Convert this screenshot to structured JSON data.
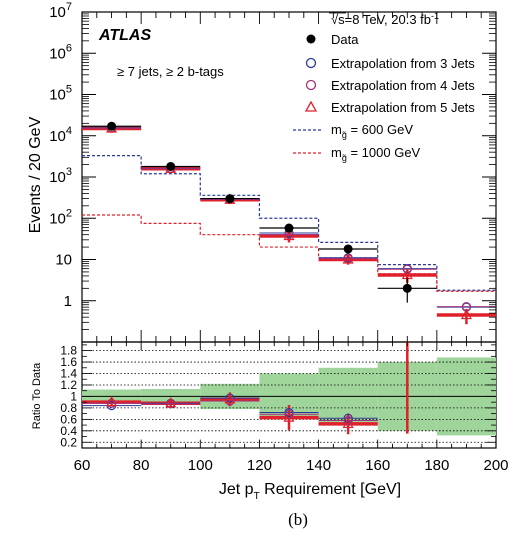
{
  "caption": "(b)",
  "chart_data": {
    "type": "step-histogram",
    "xlabel_main": "Jet p",
    "xlabel_sub": "T",
    "xlabel_rest": " Requirement [GeV]",
    "ylabel": "Events / 20 GeV",
    "ratio_ylabel": "Ratio To Data",
    "xlim": [
      60,
      200
    ],
    "ylim_log": [
      0.1,
      10000000
    ],
    "ratio_ylim": [
      0.1,
      1.95
    ],
    "x_ticks": [
      "60",
      "80",
      "100",
      "120",
      "140",
      "160",
      "180",
      "200"
    ],
    "y_ticks": [
      {
        "base": "10",
        "exp": "7"
      },
      {
        "base": "10",
        "exp": "6"
      },
      {
        "base": "10",
        "exp": "5"
      },
      {
        "base": "10",
        "exp": "4"
      },
      {
        "base": "10",
        "exp": "3"
      },
      {
        "base": "10",
        "exp": "2"
      },
      {
        "base": "10",
        "exp": ""
      },
      {
        "base": "1",
        "exp": ""
      }
    ],
    "ratio_ticks": [
      "1.8",
      "1.6",
      "1.4",
      "1.2",
      "1",
      "0.8",
      "0.6",
      "0.4",
      "0.2"
    ],
    "experiment": "ATLAS",
    "energy_label": "√s=8 TeV, 20.3 fb",
    "energy_sup": "-1",
    "selection": "≥ 7 jets, ≥ 2 b-tags",
    "legend": {
      "data": "Data",
      "ext3": "Extrapolation from 3 Jets",
      "ext4": "Extrapolation from 4 Jets",
      "ext5": "Extrapolation from 5 Jets",
      "sig600_pre": "m",
      "sig600_post": " = 600 GeV",
      "sig1000_pre": "m",
      "sig1000_post": " = 1000 GeV",
      "gluino_sub": "g̃"
    },
    "bins": [
      {
        "lo": 60,
        "hi": 80
      },
      {
        "lo": 80,
        "hi": 100
      },
      {
        "lo": 100,
        "hi": 120
      },
      {
        "lo": 120,
        "hi": 140
      },
      {
        "lo": 140,
        "hi": 160
      },
      {
        "lo": 160,
        "hi": 180
      },
      {
        "lo": 180,
        "hi": 200
      }
    ],
    "data_points": [
      {
        "x": 70,
        "y": 17000,
        "lo": 16500,
        "hi": 17500
      },
      {
        "x": 90,
        "y": 1800,
        "lo": 1720,
        "hi": 1880
      },
      {
        "x": 110,
        "y": 300,
        "lo": 283,
        "hi": 317
      },
      {
        "x": 130,
        "y": 58,
        "lo": 51,
        "hi": 66
      },
      {
        "x": 150,
        "y": 18,
        "lo": 14,
        "hi": 23
      },
      {
        "x": 170,
        "y": 2,
        "lo": 0.9,
        "hi": 3.6
      }
    ],
    "ext3": [
      15500,
      1620,
      290,
      44,
      11,
      6,
      0.7
    ],
    "ext4": [
      15200,
      1600,
      285,
      40,
      10.5,
      5.8,
      0.72
    ],
    "ext5": {
      "values": [
        15000,
        1580,
        280,
        37,
        10,
        4.2,
        0.45
      ],
      "errs": [
        0.1,
        0.1,
        0.12,
        0.3,
        0.25,
        0.35,
        0.4
      ]
    },
    "sig600": [
      3300,
      1200,
      360,
      100,
      26,
      7.5,
      1.8
    ],
    "sig1000": [
      120,
      75,
      40,
      20,
      11,
      4.5,
      1.7
    ],
    "ratio": {
      "ext3": [
        0.84,
        0.88,
        0.97,
        0.72,
        0.62
      ],
      "ext4": [
        0.88,
        0.87,
        0.92,
        0.69,
        0.58
      ],
      "ext5": [
        0.9,
        0.88,
        0.95,
        0.63,
        0.52
      ],
      "ext5_err": [
        0.07,
        0.07,
        0.12,
        0.22,
        0.18,
        1.05
      ],
      "band": [
        0.12,
        0.13,
        0.22,
        0.4,
        0.5,
        0.6,
        0.68
      ],
      "data_err_bin6": {
        "x": 170,
        "lo": 0.35,
        "hi": 1.95,
        "y": 0.5
      }
    }
  }
}
